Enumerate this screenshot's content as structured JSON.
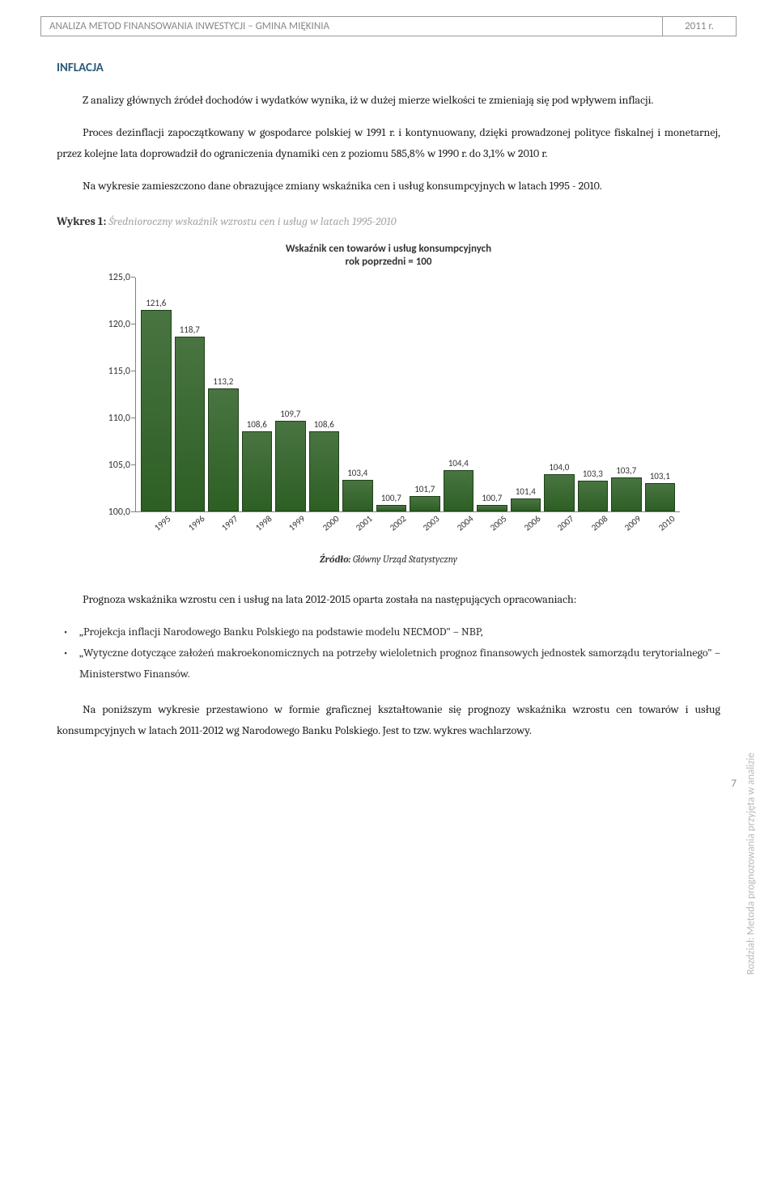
{
  "header": {
    "title": "ANALIZA METOD FINANSOWANIA INWESTYCJI – GMINA MIĘKINIA",
    "year": "2011 r."
  },
  "section_title": "INFLACJA",
  "paragraphs": {
    "p1": "Z analizy głównych źródeł dochodów i wydatków wynika, iż w dużej mierze wielkości te zmieniają się pod wpływem inflacji.",
    "p2": "Proces dezinflacji zapoczątkowany w gospodarce polskiej w 1991 r. i kontynuowany, dzięki prowadzonej polityce fiskalnej i monetarnej, przez kolejne lata doprowadził do ograniczenia dynamiki cen z poziomu 585,8% w 1990 r. do 3,1% w 2010 r.",
    "p3": "Na wykresie zamieszczono dane obrazujące zmiany wskaźnika cen i usług konsumpcyjnych w latach 1995 - 2010.",
    "p4": "Prognoza wskaźnika wzrostu cen i usług na lata 2012-2015 oparta została na następujących opracowaniach:",
    "p5": "Na poniższym wykresie przestawiono w formie graficznej kształtowanie się prognozy wskaźnika wzrostu cen towarów i usług konsumpcyjnych w latach 2011-2012 wg Narodowego Banku Polskiego. Jest to tzw. wykres wachlarzowy."
  },
  "wykres": {
    "prefix": "Wykres 1:",
    "title": "Średnioroczny wskaźnik wzrostu cen i usług w latach 1995-2010"
  },
  "chart": {
    "type": "bar",
    "title_line1": "Wskaźnik cen towarów i usług konsumpcyjnych",
    "title_line2": "rok poprzedni = 100",
    "ymin": 100.0,
    "ymax": 125.0,
    "yticks": [
      "100,0",
      "105,0",
      "110,0",
      "115,0",
      "120,0",
      "125,0"
    ],
    "bar_color": "#2d5f24",
    "bar_border": "#1e4018",
    "axis_color": "#808080",
    "background": "#ffffff",
    "labels_font": "Calibri",
    "categories": [
      "1995",
      "1996",
      "1997",
      "1998",
      "1999",
      "2000",
      "2001",
      "2002",
      "2003",
      "2004",
      "2005",
      "2006",
      "2007",
      "2008",
      "2009",
      "2010"
    ],
    "values": [
      121.6,
      118.7,
      113.2,
      108.6,
      109.7,
      108.6,
      103.4,
      100.7,
      101.7,
      104.4,
      100.7,
      101.4,
      104.0,
      103.3,
      103.7,
      103.1
    ],
    "value_labels": [
      "121,6",
      "118,7",
      "113,2",
      "108,6",
      "109,7",
      "108,6",
      "103,4",
      "100,7",
      "101,7",
      "104,4",
      "100,7",
      "101,4",
      "104,0",
      "103,3",
      "103,7",
      "103,1"
    ]
  },
  "source": {
    "prefix": "Źródło:",
    "text": "Główny Urząd Statystyczny"
  },
  "bullets": {
    "b1": "„Projekcja inflacji Narodowego Banku Polskiego na podstawie modelu NECMOD\" – NBP,",
    "b2": "„Wytyczne dotyczące założeń makroekonomicznych na potrzeby wieloletnich prognoz finansowych jednostek samorządu terytorialnego\" – Ministerstwo Finansów."
  },
  "side_label": "Rozdział: Metoda prognozowania przyjęta w analizie",
  "page_number": "7"
}
